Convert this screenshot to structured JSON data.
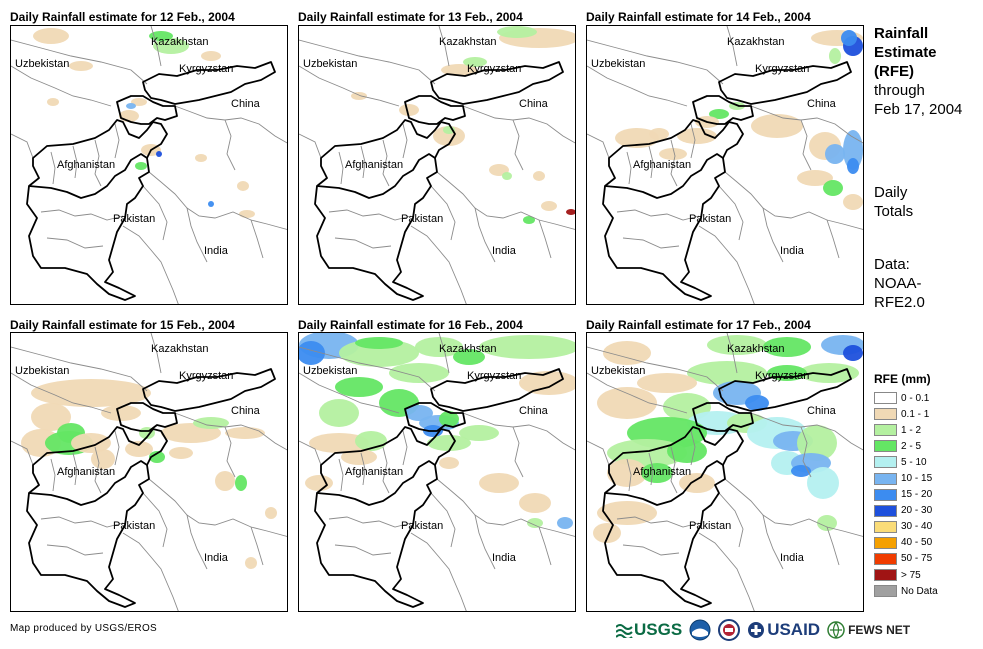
{
  "panels": [
    {
      "title": "Daily Rainfall estimate for 12 Feb., 2004",
      "day": 12
    },
    {
      "title": "Daily Rainfall estimate for 13 Feb., 2004",
      "day": 13
    },
    {
      "title": "Daily Rainfall estimate for 14 Feb., 2004",
      "day": 14
    },
    {
      "title": "Daily Rainfall estimate for 15 Feb., 2004",
      "day": 15
    },
    {
      "title": "Daily Rainfall estimate for 16 Feb., 2004",
      "day": 16
    },
    {
      "title": "Daily Rainfall estimate for 17 Feb., 2004",
      "day": 17
    }
  ],
  "map_labels": {
    "kazakhstan": "Kazakhstan",
    "uzbekistan": "Uzbekistan",
    "kyrgyzstan": "Kyrgyzstan",
    "china": "China",
    "afghanistan": "Afghanistan",
    "pakistan": "Pakistan",
    "india": "India"
  },
  "side": {
    "title_line1": "Rainfall",
    "title_line2": "Estimate",
    "title_line3": "(RFE)",
    "through": "through",
    "date": "Feb 17, 2004",
    "daily": "Daily",
    "totals": "Totals",
    "data_label": "Data:",
    "data_src1": "NOAA-",
    "data_src2": "RFE2.0"
  },
  "legend": {
    "title": "RFE (mm)",
    "items": [
      {
        "label": "0 - 0.1",
        "color": "#ffffff"
      },
      {
        "label": "0.1 - 1",
        "color": "#f0d9b5"
      },
      {
        "label": "1 - 2",
        "color": "#b4f0a0"
      },
      {
        "label": "2 - 5",
        "color": "#64e664"
      },
      {
        "label": "5 - 10",
        "color": "#b4f0f0"
      },
      {
        "label": "10 - 15",
        "color": "#78b4f0"
      },
      {
        "label": "15 - 20",
        "color": "#3c8cf0"
      },
      {
        "label": "20 - 30",
        "color": "#1e50dc"
      },
      {
        "label": "30 - 40",
        "color": "#fadc78"
      },
      {
        "label": "40 - 50",
        "color": "#f5a000"
      },
      {
        "label": "50 - 75",
        "color": "#f03c00"
      },
      {
        "label": "> 75",
        "color": "#a01414"
      },
      {
        "label": "No Data",
        "color": "#a0a0a0"
      }
    ]
  },
  "footer": {
    "credit": "Map produced by USGS/EROS",
    "usgs": "USGS",
    "usaid": "USAID",
    "fewsnet": "FEWS NET"
  }
}
